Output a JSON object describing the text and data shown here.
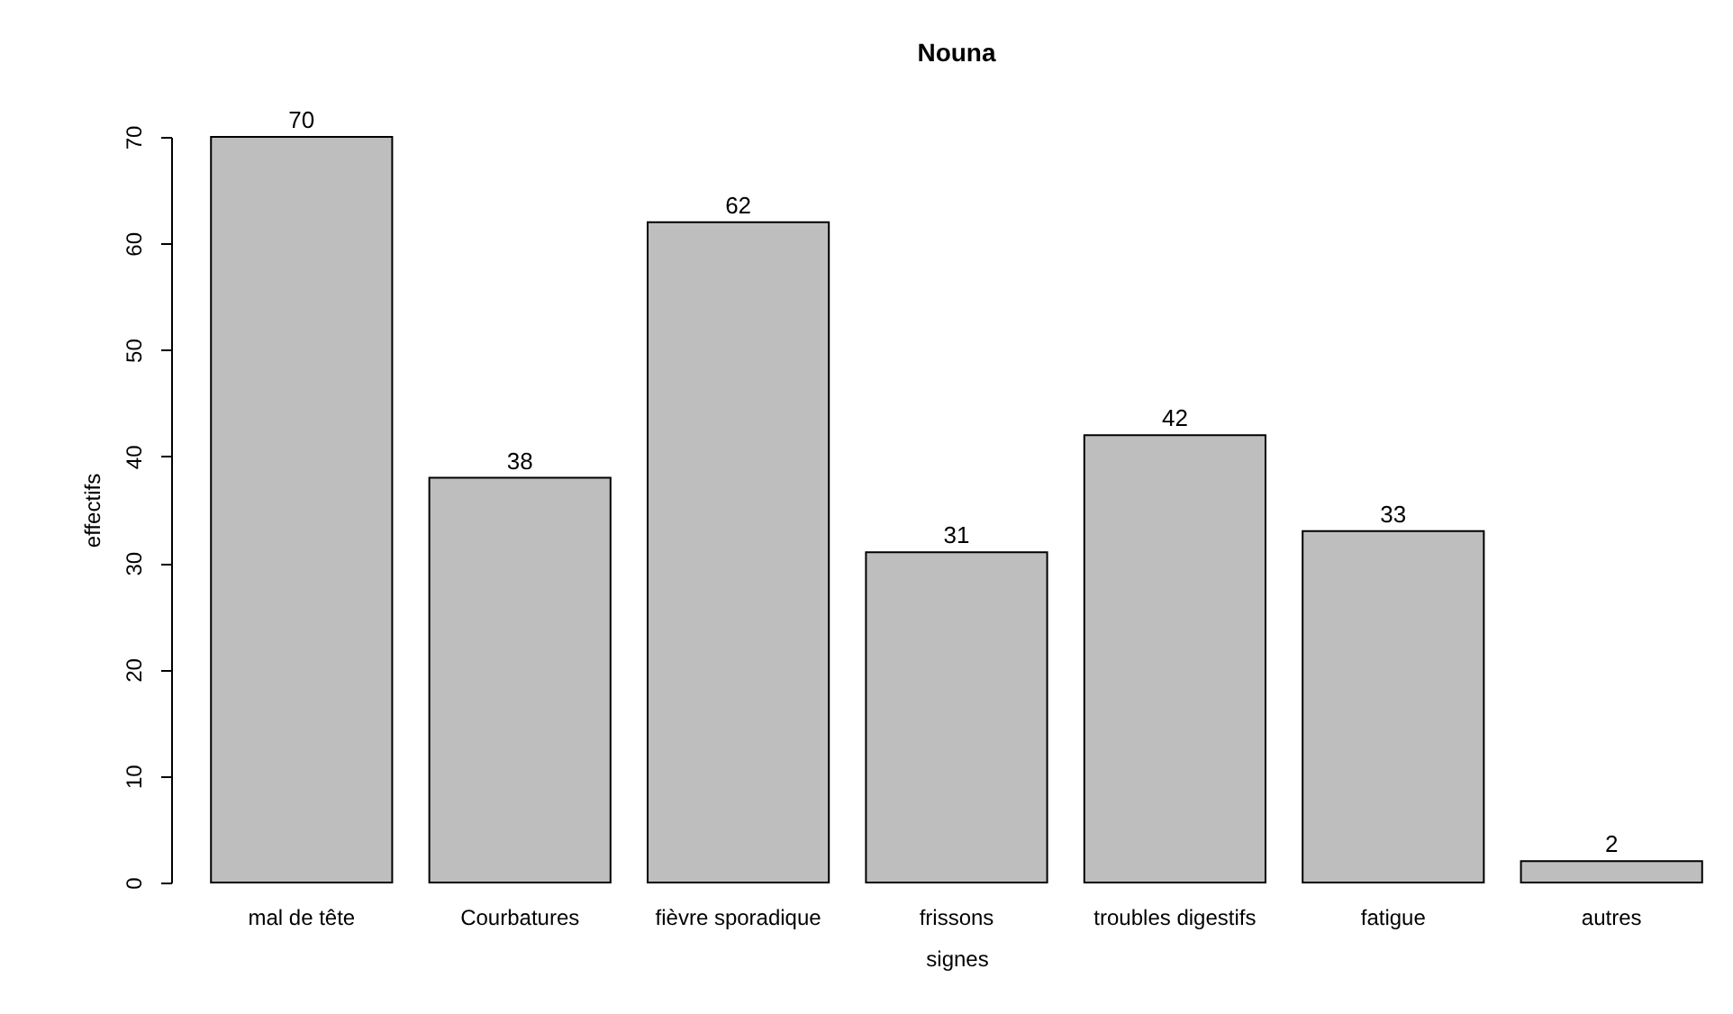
{
  "chart_data": {
    "type": "bar",
    "title": "Nouna",
    "xlabel": "signes",
    "ylabel": "effectifs",
    "categories": [
      "mal de tête",
      "Courbatures",
      "fièvre sporadique",
      "frissons",
      "troubles digestifs",
      "fatigue",
      "autres"
    ],
    "values": [
      70,
      38,
      62,
      31,
      42,
      33,
      2
    ],
    "color": "#bebebe",
    "ylim": [
      0,
      70
    ],
    "yticks": [
      0,
      10,
      20,
      30,
      40,
      50,
      60,
      70
    ],
    "data_labels": true
  }
}
